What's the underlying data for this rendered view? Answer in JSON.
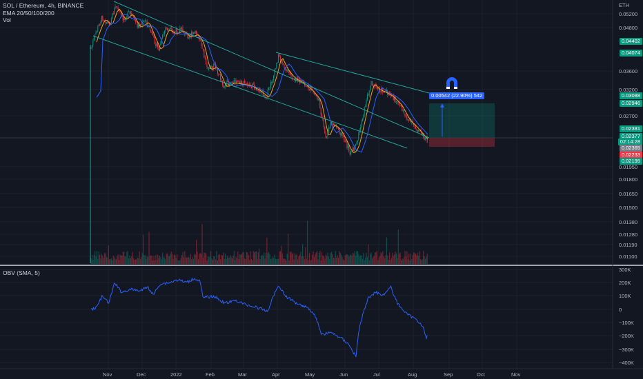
{
  "header": {
    "symbol": "SOL / Ethereum, 4h, BINANCE",
    "ema": "EMA 20/50/100/200",
    "vol": "Vol",
    "currency": "ETH"
  },
  "obv": {
    "label": "OBV (SMA, 5)"
  },
  "measure": {
    "text": "0.00542 (22.90%) 542"
  },
  "price_axis": [
    "0.05200",
    "0.04800",
    "0.03600",
    "0.03200",
    "0.02700",
    "0.01950",
    "0.01800",
    "0.01650",
    "0.01500",
    "0.01380",
    "0.01280",
    "0.01190",
    "0.01100"
  ],
  "price_tags": [
    {
      "text": "0.04402",
      "color": "#089981"
    },
    {
      "text": "0.04074",
      "color": "#089981"
    },
    {
      "text": "0.03088",
      "color": "#089981"
    },
    {
      "text": "0.02946",
      "color": "#089981"
    },
    {
      "text": "0.02381",
      "color": "#089981"
    },
    {
      "text": "0.02377",
      "color": "#089981"
    },
    {
      "text": "02:14:28",
      "color": "#089981"
    },
    {
      "text": "0.02365",
      "color": "#787b86"
    },
    {
      "text": "0.02233",
      "color": "#f23645"
    },
    {
      "text": "0.02195",
      "color": "#089981"
    }
  ],
  "obv_axis": [
    "300K",
    "200K",
    "100K",
    "0",
    "−100K",
    "−200K",
    "−300K",
    "−400K"
  ],
  "time_axis": [
    "Nov",
    "Dec",
    "2022",
    "Feb",
    "Mar",
    "Apr",
    "May",
    "Jun",
    "Jul",
    "Aug",
    "Sep",
    "Oct",
    "Nov"
  ],
  "colors": {
    "background": "#131722",
    "up": "#089981",
    "down": "#f23645",
    "obv_line": "#2962ff",
    "trendline": "#26a69a",
    "ema_fast": "#f7a21b",
    "ema_slow": "#2962ff"
  }
}
